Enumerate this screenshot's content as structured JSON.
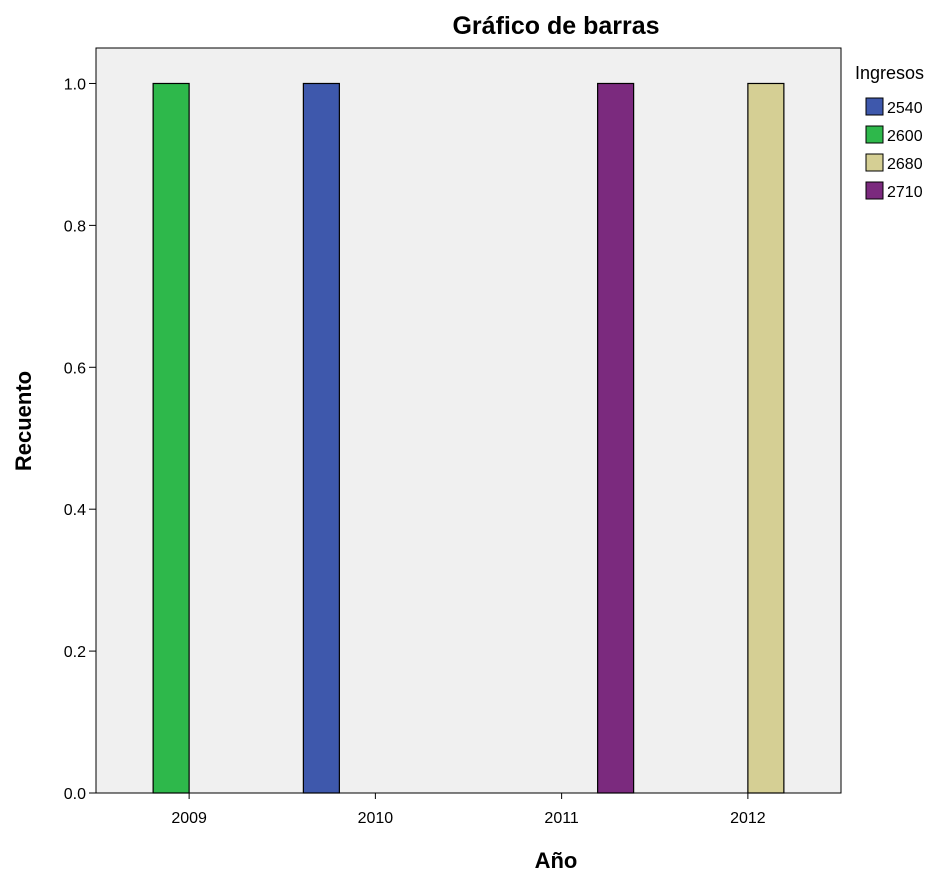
{
  "chart_data": {
    "type": "bar",
    "title": "Gráfico de barras",
    "xlabel": "Año",
    "ylabel": "Recuento",
    "categories": [
      "2009",
      "2010",
      "2011",
      "2012"
    ],
    "ylim": [
      0,
      1.05
    ],
    "yticks": [
      "0.0",
      "0.2",
      "0.4",
      "0.6",
      "0.8",
      "1.0"
    ],
    "grid": false,
    "legend": {
      "title": "Ingresos",
      "placement": "right"
    },
    "plot_background": "#f0f0f0",
    "series": [
      {
        "name": "2540",
        "color": "#3e58ac",
        "values": [
          0,
          1,
          0,
          0
        ]
      },
      {
        "name": "2600",
        "color": "#2eb84b",
        "values": [
          1,
          0,
          0,
          0
        ]
      },
      {
        "name": "2680",
        "color": "#d5cf94",
        "values": [
          0,
          0,
          0,
          1
        ]
      },
      {
        "name": "2710",
        "color": "#7b2a7e",
        "values": [
          0,
          0,
          1,
          0
        ]
      }
    ]
  }
}
